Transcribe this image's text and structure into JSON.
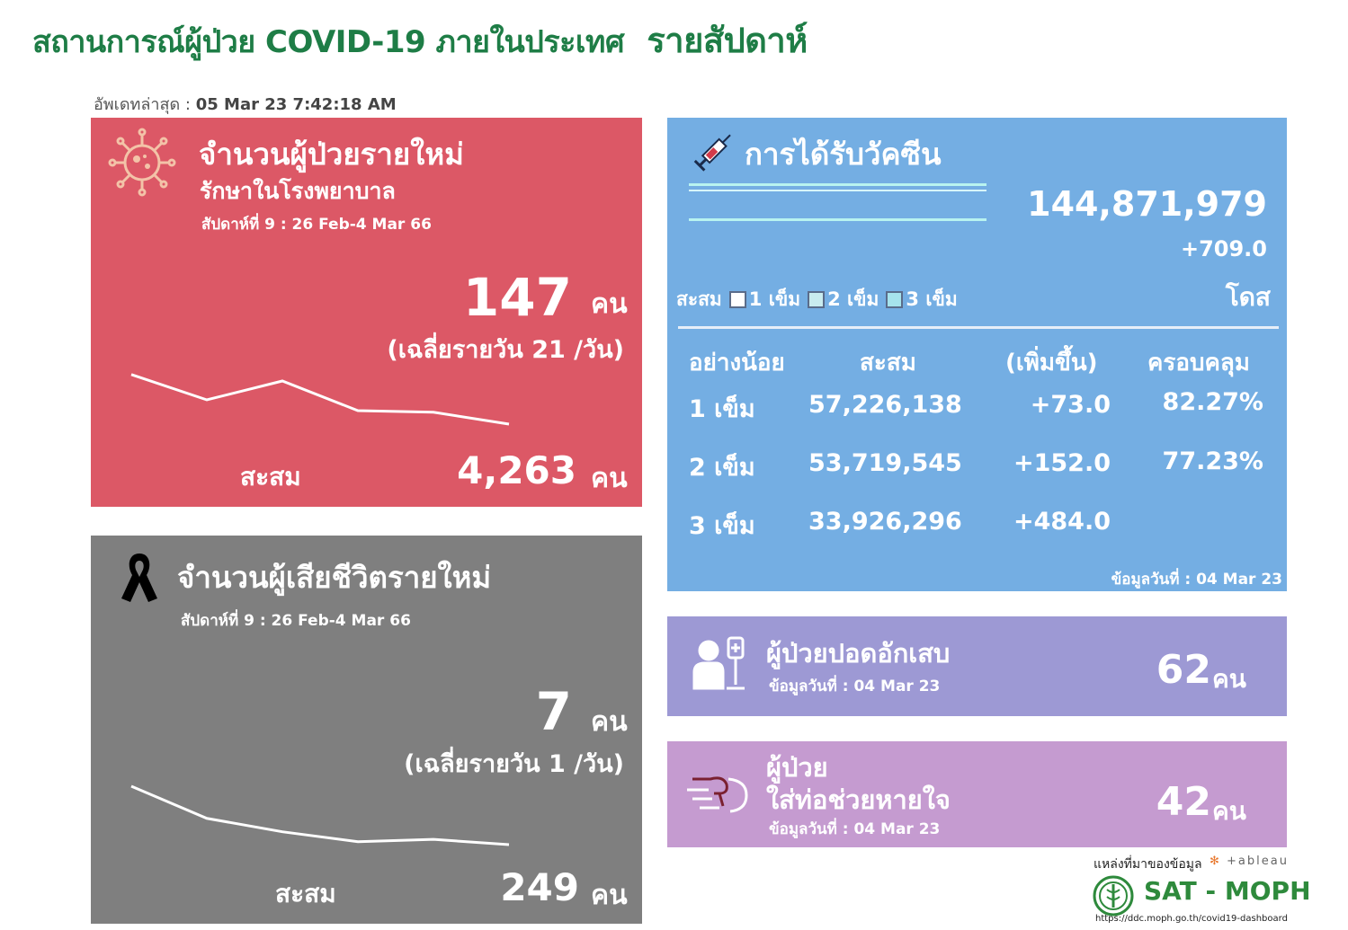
{
  "header": {
    "title": "สถานการณ์ผู้ป่วย COVID-19 ภายในประเทศ",
    "title_highlight": "รายสัปดาห์",
    "updated_label": "อัพเดทล่าสุด :",
    "updated_value": "05 Mar 23 7:42:18 AM"
  },
  "cases": {
    "title": "จำนวนผู้ป่วยรายใหม่",
    "subtitle": "รักษาในโรงพยาบาล",
    "week": "สัปดาห์ที่ 9 : 26 Feb-4 Mar 66",
    "value": "147",
    "unit": "คน",
    "avg": "(เฉลี่ยรายวัน 21 /วัน)",
    "cum_label": "สะสม",
    "cum_value": "4,263",
    "cum_unit": "คน",
    "trend": [
      0.92,
      0.45,
      0.8,
      0.25,
      0.22,
      0.0
    ]
  },
  "deaths": {
    "title": "จำนวนผู้เสียชีวิตรายใหม่",
    "week": "สัปดาห์ที่  9 : 26 Feb-4 Mar 66",
    "value": "7",
    "unit": "คน",
    "avg": "(เฉลี่ยรายวัน 1 /วัน)",
    "cum_label": "สะสม",
    "cum_value": "249",
    "cum_unit": "คน",
    "trend": [
      1.0,
      0.45,
      0.22,
      0.05,
      0.09,
      0.0
    ]
  },
  "vaccine": {
    "title": "การได้รับวัคซีน",
    "total": "144,871,979",
    "delta": "+709.0",
    "dose_unit": "โดส",
    "legend_label": "สะสม",
    "legend": [
      "1 เข็ม",
      "2 เข็ม",
      "3 เข็ม"
    ],
    "legend_colors": [
      "#ffffff",
      "#c9ecef",
      "#a6e3ec"
    ],
    "headers": [
      "อย่างน้อย",
      "สะสม",
      "(เพิ่มขึ้น)",
      "ครอบคลุม"
    ],
    "rows": [
      {
        "dose": "1 เข็ม",
        "cumulative": "57,226,138",
        "increase": "+73.0",
        "coverage": "82.27%"
      },
      {
        "dose": "2 เข็ม",
        "cumulative": "53,719,545",
        "increase": "+152.0",
        "coverage": "77.23%"
      },
      {
        "dose": "3 เข็ม",
        "cumulative": "33,926,296",
        "increase": "+484.0",
        "coverage": ""
      }
    ],
    "note": "ข้อมูลวันที่ : 04 Mar 23"
  },
  "pneumonia": {
    "title": "ผู้ป่วยปอดอักเสบ",
    "note": "ข้อมูลวันที่ : 04 Mar 23",
    "value": "62",
    "unit": "คน"
  },
  "ventilator": {
    "title_line1": "ผู้ป่วย",
    "title_line2": "ใส่ท่อช่วยหายใจ",
    "note": "ข้อมูลวันที่ : 04 Mar 23",
    "value": "42",
    "unit": "คน"
  },
  "footer": {
    "source_label": "แหล่งที่มาของข้อมูล",
    "tableau": "+ableau",
    "sat": "SAT - MOPH",
    "url": "https://ddc.moph.go.th/covid19-dashboard"
  }
}
